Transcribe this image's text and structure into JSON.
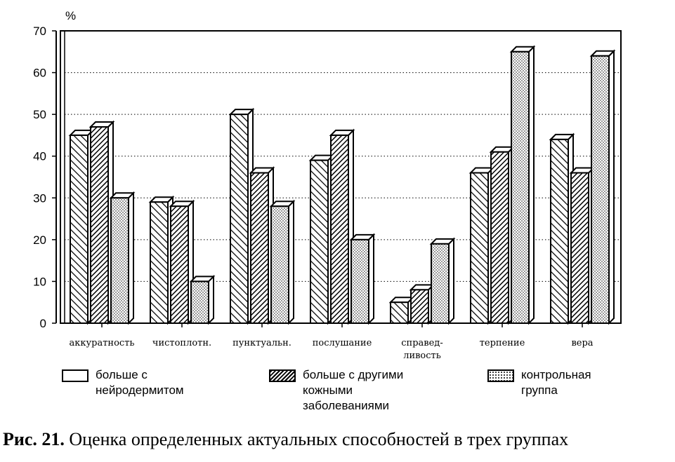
{
  "chart_data": {
    "type": "bar",
    "unit_label": "%",
    "ylim": [
      0,
      70
    ],
    "yticks": [
      0,
      10,
      20,
      30,
      40,
      50,
      60,
      70
    ],
    "grid": true,
    "categories": [
      [
        "аккуратность"
      ],
      [
        "чистоплотн."
      ],
      [
        "пунктуальн."
      ],
      [
        "послушание"
      ],
      [
        "справед-",
        "ливость"
      ],
      [
        "терпение"
      ],
      [
        "вера"
      ]
    ],
    "series": [
      {
        "name": "больше с нейродермитом",
        "pattern": "hatch-right",
        "values": [
          45,
          29,
          50,
          39,
          5,
          36,
          44
        ]
      },
      {
        "name": "больше с другими кожными заболеваниями",
        "pattern": "hatch-dark",
        "values": [
          47,
          28,
          36,
          45,
          8,
          41,
          36
        ]
      },
      {
        "name": "контрольная группа",
        "pattern": "dots",
        "values": [
          30,
          10,
          28,
          20,
          19,
          65,
          64
        ]
      }
    ]
  },
  "legend": [
    {
      "label": "больше с\nнейродермитом",
      "pattern": "plain"
    },
    {
      "label": "больше с другими\nкожными\nзаболеваниями",
      "pattern": "hatch-dark"
    },
    {
      "label": "контрольная\nгруппа",
      "pattern": "dots"
    }
  ],
  "caption": {
    "prefix": "Рис. 21.",
    "text": " Оценка определенных актуальных способностей в трех группах"
  }
}
